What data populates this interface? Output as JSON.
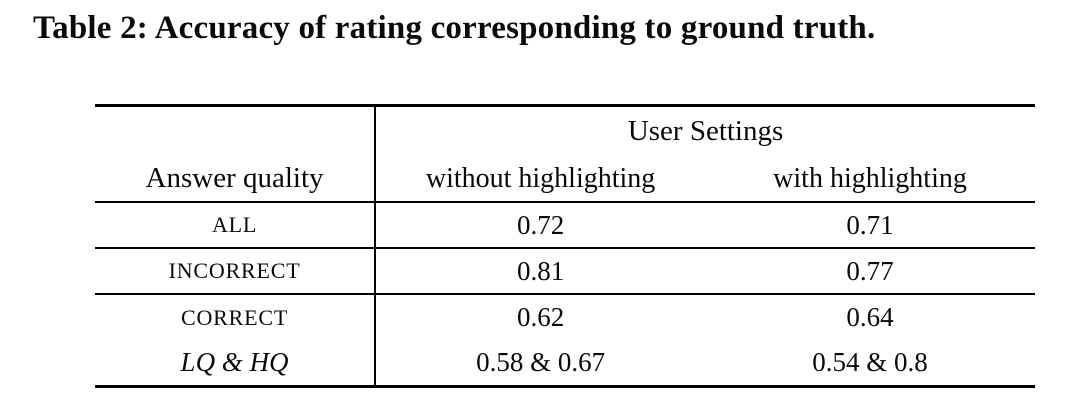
{
  "caption": "Table 2: Accuracy of rating corresponding to ground truth.",
  "colors": {
    "background": "#ffffff",
    "text": "#0a0a0a",
    "rule": "#000000"
  },
  "table": {
    "group_header": "User Settings",
    "headers": [
      "Answer quality",
      "without highlighting",
      "with highlighting"
    ],
    "rows": [
      {
        "label": "ALL",
        "values": [
          "0.72",
          "0.71"
        ]
      },
      {
        "label": "INCORRECT",
        "values": [
          "0.81",
          "0.77"
        ]
      },
      {
        "label": "CORRECT",
        "values": [
          "0.62",
          "0.64"
        ]
      },
      {
        "label": "LQ & HQ",
        "values": [
          "0.58 & 0.67",
          "0.54 & 0.8"
        ]
      }
    ]
  }
}
